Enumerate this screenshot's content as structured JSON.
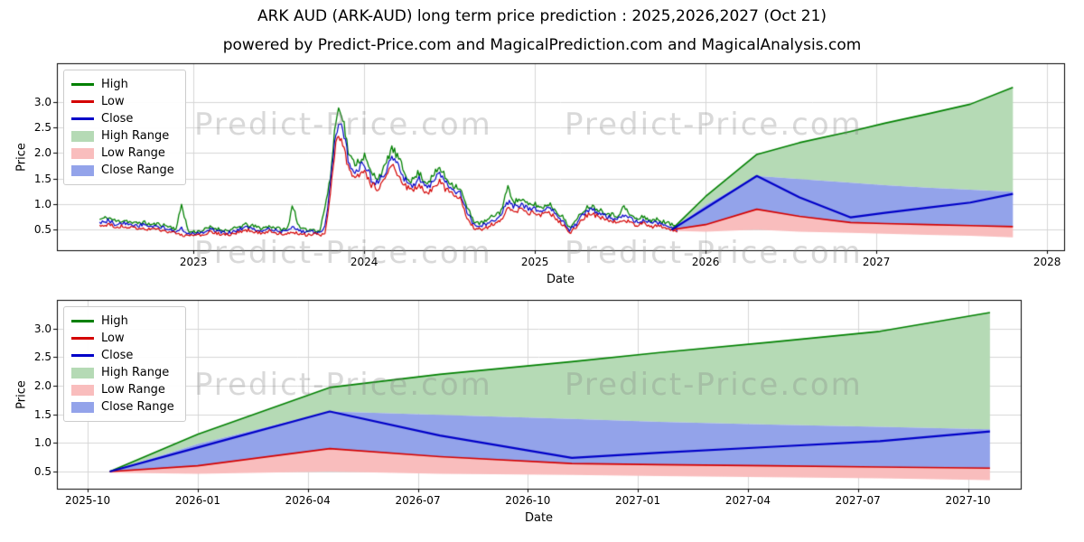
{
  "header": {
    "title": "ARK AUD (ARK-AUD) long term price prediction : 2025,2026,2027 (Oct 21)",
    "subtitle": "powered by Predict-Price.com and MagicalPrediction.com and MagicalAnalysis.com"
  },
  "watermark": {
    "text": "Predict-Price.com",
    "color": "rgba(128,128,128,0.30)"
  },
  "colors": {
    "high_line": "#008000",
    "low_line": "#d40000",
    "close_line": "#0000c8",
    "high_range_fill": "#b5dab5",
    "low_range_fill": "#f9bdbd",
    "close_range_fill": "#93a3ea",
    "grid": "#d6d6d6",
    "spine": "#000000"
  },
  "legend": [
    {
      "label": "High",
      "swatch": "line",
      "color": "#008000"
    },
    {
      "label": "Low",
      "swatch": "line",
      "color": "#d40000"
    },
    {
      "label": "Close",
      "swatch": "line",
      "color": "#0000c8"
    },
    {
      "label": "High Range",
      "swatch": "patch",
      "color": "#b5dab5"
    },
    {
      "label": "Low Range",
      "swatch": "patch",
      "color": "#f9bdbd"
    },
    {
      "label": "Close Range",
      "swatch": "patch",
      "color": "#93a3ea"
    }
  ],
  "chart_data": [
    {
      "type": "line",
      "name": "history-and-forecast",
      "xlabel": "Date",
      "ylabel": "Price",
      "grid": true,
      "legend_position": "upper-left",
      "xlim": [
        2022.2,
        2028.1
      ],
      "ylim": [
        0.1,
        3.75
      ],
      "xticks": [
        {
          "t": 2023,
          "label": "2023"
        },
        {
          "t": 2024,
          "label": "2024"
        },
        {
          "t": 2025,
          "label": "2025"
        },
        {
          "t": 2026,
          "label": "2026"
        },
        {
          "t": 2027,
          "label": "2027"
        },
        {
          "t": 2028,
          "label": "2028"
        }
      ],
      "yticks": [
        {
          "v": 0.5,
          "label": "0.5"
        },
        {
          "v": 1.0,
          "label": "1.0"
        },
        {
          "v": 1.5,
          "label": "1.5"
        },
        {
          "v": 2.0,
          "label": "2.0"
        },
        {
          "v": 2.5,
          "label": "2.5"
        },
        {
          "v": 3.0,
          "label": "3.0"
        }
      ],
      "history_columns": [
        "t",
        "high",
        "low",
        "close"
      ],
      "history": [
        [
          2022.45,
          0.7,
          0.57,
          0.64
        ],
        [
          2022.5,
          0.74,
          0.6,
          0.68
        ],
        [
          2022.55,
          0.66,
          0.55,
          0.6
        ],
        [
          2022.6,
          0.69,
          0.57,
          0.63
        ],
        [
          2022.65,
          0.62,
          0.52,
          0.57
        ],
        [
          2022.7,
          0.65,
          0.54,
          0.6
        ],
        [
          2022.75,
          0.6,
          0.5,
          0.55
        ],
        [
          2022.8,
          0.61,
          0.51,
          0.56
        ],
        [
          2022.85,
          0.57,
          0.47,
          0.52
        ],
        [
          2022.9,
          0.52,
          0.42,
          0.47
        ],
        [
          2022.93,
          1.0,
          0.4,
          0.52
        ],
        [
          2022.97,
          0.46,
          0.38,
          0.42
        ],
        [
          2023.0,
          0.46,
          0.38,
          0.42
        ],
        [
          2023.05,
          0.48,
          0.4,
          0.44
        ],
        [
          2023.1,
          0.55,
          0.45,
          0.5
        ],
        [
          2023.15,
          0.51,
          0.42,
          0.46
        ],
        [
          2023.2,
          0.48,
          0.4,
          0.44
        ],
        [
          2023.25,
          0.53,
          0.43,
          0.48
        ],
        [
          2023.3,
          0.6,
          0.5,
          0.55
        ],
        [
          2023.35,
          0.57,
          0.47,
          0.52
        ],
        [
          2023.4,
          0.53,
          0.44,
          0.48
        ],
        [
          2023.45,
          0.57,
          0.47,
          0.52
        ],
        [
          2023.5,
          0.52,
          0.43,
          0.47
        ],
        [
          2023.55,
          0.5,
          0.41,
          0.45
        ],
        [
          2023.58,
          1.0,
          0.44,
          0.55
        ],
        [
          2023.62,
          0.53,
          0.43,
          0.48
        ],
        [
          2023.66,
          0.49,
          0.4,
          0.44
        ],
        [
          2023.7,
          0.51,
          0.42,
          0.46
        ],
        [
          2023.74,
          0.47,
          0.39,
          0.42
        ],
        [
          2023.77,
          0.95,
          0.42,
          0.55
        ],
        [
          2023.8,
          1.45,
          1.1,
          1.3
        ],
        [
          2023.83,
          2.55,
          2.1,
          2.35
        ],
        [
          2023.855,
          2.93,
          2.35,
          2.6
        ],
        [
          2023.88,
          2.6,
          2.15,
          2.4
        ],
        [
          2023.91,
          1.95,
          1.65,
          1.8
        ],
        [
          2023.94,
          1.8,
          1.5,
          1.65
        ],
        [
          2023.97,
          1.85,
          1.55,
          1.7
        ],
        [
          2024.0,
          1.95,
          1.62,
          1.8
        ],
        [
          2024.04,
          1.6,
          1.38,
          1.5
        ],
        [
          2024.08,
          1.52,
          1.3,
          1.42
        ],
        [
          2024.12,
          1.7,
          1.45,
          1.58
        ],
        [
          2024.16,
          2.1,
          1.75,
          1.92
        ],
        [
          2024.2,
          1.9,
          1.6,
          1.75
        ],
        [
          2024.24,
          1.58,
          1.35,
          1.47
        ],
        [
          2024.28,
          1.45,
          1.25,
          1.35
        ],
        [
          2024.32,
          1.62,
          1.38,
          1.5
        ],
        [
          2024.36,
          1.42,
          1.22,
          1.32
        ],
        [
          2024.4,
          1.52,
          1.3,
          1.42
        ],
        [
          2024.44,
          1.72,
          1.45,
          1.58
        ],
        [
          2024.48,
          1.5,
          1.28,
          1.4
        ],
        [
          2024.52,
          1.38,
          1.18,
          1.28
        ],
        [
          2024.56,
          1.32,
          1.12,
          1.22
        ],
        [
          2024.6,
          0.95,
          0.75,
          0.85
        ],
        [
          2024.64,
          0.68,
          0.55,
          0.62
        ],
        [
          2024.68,
          0.62,
          0.5,
          0.56
        ],
        [
          2024.72,
          0.68,
          0.55,
          0.62
        ],
        [
          2024.76,
          0.78,
          0.63,
          0.7
        ],
        [
          2024.8,
          0.85,
          0.7,
          0.78
        ],
        [
          2024.84,
          1.32,
          0.9,
          1.05
        ],
        [
          2024.88,
          1.05,
          0.85,
          0.95
        ],
        [
          2024.92,
          1.1,
          0.9,
          1.0
        ],
        [
          2024.96,
          0.98,
          0.82,
          0.9
        ],
        [
          2025.0,
          1.0,
          0.84,
          0.92
        ],
        [
          2025.04,
          0.92,
          0.78,
          0.85
        ],
        [
          2025.08,
          1.02,
          0.85,
          0.94
        ],
        [
          2025.12,
          0.88,
          0.73,
          0.8
        ],
        [
          2025.16,
          0.76,
          0.62,
          0.69
        ],
        [
          2025.2,
          0.55,
          0.43,
          0.48
        ],
        [
          2025.24,
          0.66,
          0.54,
          0.6
        ],
        [
          2025.28,
          0.87,
          0.72,
          0.8
        ],
        [
          2025.32,
          0.97,
          0.82,
          0.9
        ],
        [
          2025.36,
          0.92,
          0.77,
          0.85
        ],
        [
          2025.4,
          0.86,
          0.72,
          0.79
        ],
        [
          2025.44,
          0.81,
          0.68,
          0.74
        ],
        [
          2025.48,
          0.76,
          0.63,
          0.7
        ],
        [
          2025.52,
          0.95,
          0.7,
          0.8
        ],
        [
          2025.56,
          0.78,
          0.65,
          0.72
        ],
        [
          2025.6,
          0.7,
          0.58,
          0.64
        ],
        [
          2025.64,
          0.76,
          0.62,
          0.7
        ],
        [
          2025.68,
          0.67,
          0.55,
          0.61
        ],
        [
          2025.72,
          0.7,
          0.58,
          0.64
        ],
        [
          2025.76,
          0.65,
          0.54,
          0.59
        ],
        [
          2025.8,
          0.6,
          0.5,
          0.55
        ],
        [
          2025.84,
          0.55,
          0.46,
          0.5
        ]
      ],
      "forecast": {
        "t": [
          2025.8,
          2026.0,
          2026.3,
          2026.55,
          2026.85,
          2027.05,
          2027.3,
          2027.55,
          2027.8
        ],
        "close": [
          0.5,
          0.92,
          1.55,
          1.13,
          0.74,
          0.83,
          0.93,
          1.03,
          1.2
        ],
        "low_range_bottom": [
          0.48,
          0.46,
          0.5,
          0.46,
          0.44,
          0.42,
          0.4,
          0.38,
          0.35
        ],
        "low_range_top": [
          0.5,
          0.6,
          0.9,
          0.76,
          0.64,
          0.62,
          0.6,
          0.58,
          0.56
        ],
        "close_range_top": [
          0.5,
          0.98,
          1.55,
          1.49,
          1.42,
          1.37,
          1.32,
          1.28,
          1.24
        ],
        "high_range_top": [
          0.5,
          1.15,
          1.97,
          2.2,
          2.42,
          2.58,
          2.76,
          2.95,
          3.28
        ]
      },
      "noise": {
        "seed": 11,
        "amp": 1.0,
        "step": 0.008
      }
    },
    {
      "type": "line",
      "name": "forecast-detail",
      "xlabel": "Date",
      "ylabel": "Price",
      "grid": true,
      "legend_position": "upper-left",
      "xlim": [
        2025.68,
        2027.87
      ],
      "ylim": [
        0.2,
        3.5
      ],
      "xticks": [
        {
          "t": 2025.75,
          "label": "2025-10"
        },
        {
          "t": 2026.0,
          "label": "2026-01"
        },
        {
          "t": 2026.25,
          "label": "2026-04"
        },
        {
          "t": 2026.5,
          "label": "2026-07"
        },
        {
          "t": 2026.75,
          "label": "2026-10"
        },
        {
          "t": 2027.0,
          "label": "2027-01"
        },
        {
          "t": 2027.25,
          "label": "2027-04"
        },
        {
          "t": 2027.5,
          "label": "2027-07"
        },
        {
          "t": 2027.75,
          "label": "2027-10"
        }
      ],
      "yticks": [
        {
          "v": 0.5,
          "label": "0.5"
        },
        {
          "v": 1.0,
          "label": "1.0"
        },
        {
          "v": 1.5,
          "label": "1.5"
        },
        {
          "v": 2.0,
          "label": "2.0"
        },
        {
          "v": 2.5,
          "label": "2.5"
        },
        {
          "v": 3.0,
          "label": "3.0"
        }
      ],
      "forecast": {
        "t": [
          2025.8,
          2026.0,
          2026.3,
          2026.55,
          2026.85,
          2027.05,
          2027.3,
          2027.55,
          2027.8
        ],
        "close": [
          0.5,
          0.92,
          1.55,
          1.13,
          0.74,
          0.83,
          0.93,
          1.03,
          1.2
        ],
        "low_range_bottom": [
          0.48,
          0.46,
          0.5,
          0.46,
          0.44,
          0.42,
          0.4,
          0.38,
          0.35
        ],
        "low_range_top": [
          0.5,
          0.6,
          0.9,
          0.76,
          0.64,
          0.62,
          0.6,
          0.58,
          0.56
        ],
        "close_range_top": [
          0.5,
          0.98,
          1.55,
          1.49,
          1.42,
          1.37,
          1.32,
          1.28,
          1.24
        ],
        "high_range_top": [
          0.5,
          1.15,
          1.97,
          2.2,
          2.42,
          2.58,
          2.76,
          2.95,
          3.28
        ]
      }
    }
  ]
}
